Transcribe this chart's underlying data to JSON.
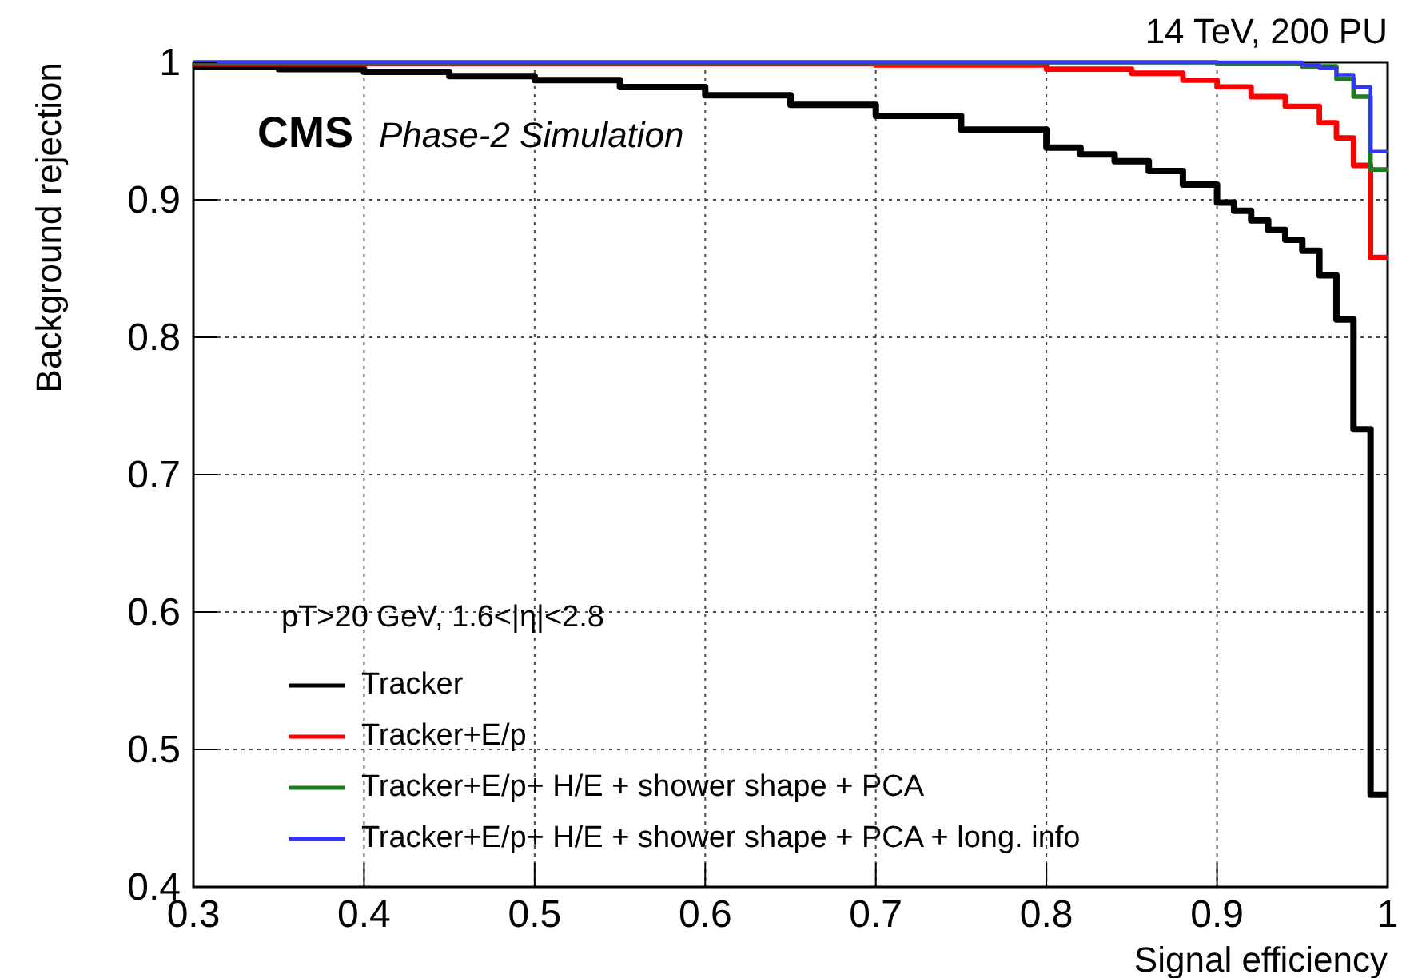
{
  "chart_data": {
    "type": "step",
    "title": "CMS",
    "subtitle": "Phase-2 Simulation",
    "annotations": [
      "14 TeV, 200 PU"
    ],
    "xlabel": "Signal efficiency",
    "ylabel": "Background rejection",
    "legend_title": "pT>20 GeV, 1.6<|η|<2.8",
    "xlim": [
      0.3,
      1
    ],
    "ylim": [
      0.4,
      1
    ],
    "xticks": [
      0.3,
      0.4,
      0.5,
      0.6,
      0.7,
      0.8,
      0.9,
      1
    ],
    "yticks": [
      0.4,
      0.5,
      0.6,
      0.7,
      0.8,
      0.9,
      1
    ],
    "grid": true,
    "legend": "bottom left",
    "line_style": "solid",
    "series": [
      {
        "name": "Tracker",
        "color": "#000000",
        "x": [
          0.3,
          0.35,
          0.4,
          0.45,
          0.5,
          0.55,
          0.6,
          0.65,
          0.7,
          0.75,
          0.8,
          0.82,
          0.84,
          0.86,
          0.88,
          0.9,
          0.91,
          0.92,
          0.93,
          0.94,
          0.95,
          0.96,
          0.97,
          0.98,
          0.99,
          1
        ],
        "values": [
          0.997,
          0.995,
          0.993,
          0.99,
          0.987,
          0.982,
          0.976,
          0.969,
          0.961,
          0.951,
          0.938,
          0.933,
          0.928,
          0.921,
          0.911,
          0.898,
          0.892,
          0.885,
          0.878,
          0.871,
          0.863,
          0.845,
          0.813,
          0.733,
          0.467,
          0.467
        ]
      },
      {
        "name": "Tracker+E/p",
        "color": "#ff0000",
        "x": [
          0.3,
          0.5,
          0.7,
          0.8,
          0.85,
          0.88,
          0.9,
          0.92,
          0.94,
          0.96,
          0.97,
          0.98,
          0.99,
          1
        ],
        "values": [
          0.999,
          0.999,
          0.998,
          0.995,
          0.992,
          0.987,
          0.982,
          0.975,
          0.968,
          0.956,
          0.945,
          0.925,
          0.858,
          0.858
        ]
      },
      {
        "name": "Tracker+E/p+ H/E + shower shape + PCA",
        "color": "#1f7a1f",
        "x": [
          0.3,
          0.8,
          0.9,
          0.95,
          0.97,
          0.98,
          0.99,
          1
        ],
        "values": [
          1,
          1,
          0.999,
          0.997,
          0.988,
          0.975,
          0.922,
          0.922
        ]
      },
      {
        "name": "Tracker+E/p+ H/E + shower shape + PCA + long. info",
        "color": "#3333ff",
        "x": [
          0.3,
          0.8,
          0.9,
          0.95,
          0.96,
          0.97,
          0.98,
          0.99,
          1
        ],
        "values": [
          1,
          1,
          1,
          0.998,
          0.996,
          0.991,
          0.982,
          0.935,
          0.935
        ]
      }
    ]
  }
}
